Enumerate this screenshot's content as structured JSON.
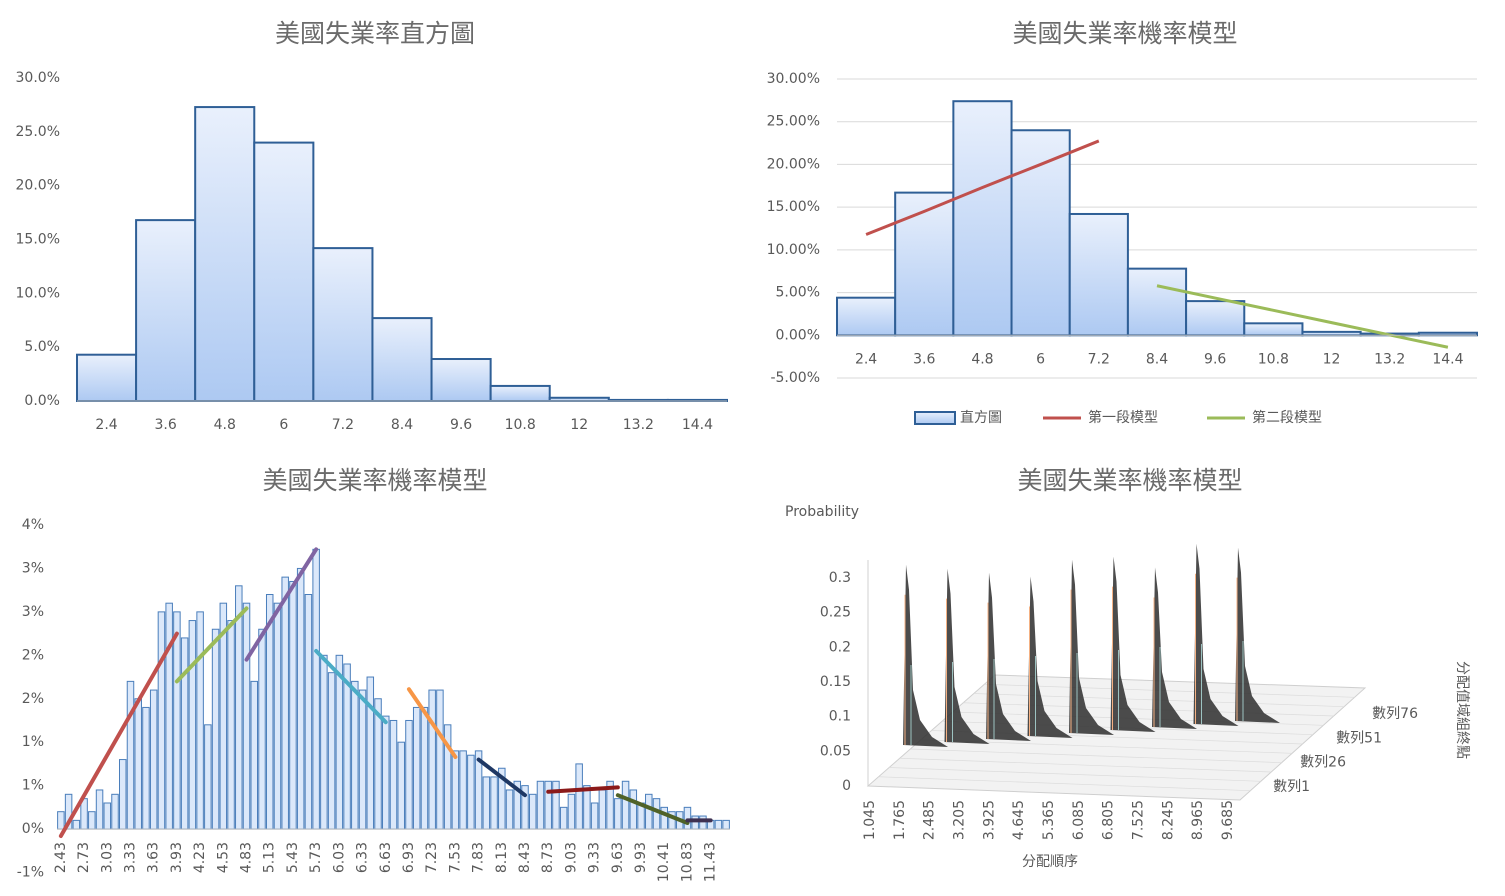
{
  "chart_data": [
    {
      "type": "bar",
      "title": "美國失業率直方圖",
      "categories": [
        "2.4",
        "3.6",
        "4.8",
        "6",
        "7.2",
        "8.4",
        "9.6",
        "10.8",
        "12",
        "13.2",
        "14.4"
      ],
      "values": [
        4.3,
        16.8,
        27.3,
        24.0,
        14.2,
        7.7,
        3.9,
        1.4,
        0.3,
        0.1,
        0.1
      ],
      "color": "#2f5f96",
      "ylim": [
        0,
        30
      ],
      "yticks": [
        {
          "value": 0,
          "label": "0.0%"
        },
        {
          "value": 5,
          "label": "5.0%"
        },
        {
          "value": 10,
          "label": "10.0%"
        },
        {
          "value": 15,
          "label": "15.0%"
        },
        {
          "value": 20,
          "label": "20.0%"
        },
        {
          "value": 25,
          "label": "25.0%"
        },
        {
          "value": 30,
          "label": "30.0%"
        }
      ],
      "grid": false
    },
    {
      "type": "combo",
      "title": "美國失業率機率模型",
      "categories": [
        "2.4",
        "3.6",
        "4.8",
        "6",
        "7.2",
        "8.4",
        "9.6",
        "10.8",
        "12",
        "13.2",
        "14.4"
      ],
      "series": [
        {
          "name": "直方圖",
          "color": "#2f5f96",
          "values": [
            4.4,
            16.7,
            27.4,
            24.0,
            14.2,
            7.8,
            4.0,
            1.4,
            0.4,
            0.2,
            0.3
          ]
        },
        {
          "name": "第一段模型",
          "color": "#c0504d",
          "values": [
            11.8,
            14.5,
            17.3,
            20.0,
            22.75,
            null,
            null,
            null,
            null,
            null,
            null
          ]
        },
        {
          "name": "第二段模型",
          "color": "#9bbb59",
          "values": [
            null,
            null,
            null,
            null,
            null,
            5.8,
            4.36,
            2.92,
            1.48,
            0.04,
            -1.4
          ]
        }
      ],
      "ylim": [
        -5,
        30
      ],
      "yticks": [
        {
          "value": -5,
          "label": "-5.00%"
        },
        {
          "value": 0,
          "label": "0.00%"
        },
        {
          "value": 5,
          "label": "5.00%"
        },
        {
          "value": 10,
          "label": "10.00%"
        },
        {
          "value": 15,
          "label": "15.00%"
        },
        {
          "value": 20,
          "label": "20.00%"
        },
        {
          "value": 25,
          "label": "25.00%"
        },
        {
          "value": 30,
          "label": "30.00%"
        }
      ],
      "grid": true,
      "legend": "bottom"
    },
    {
      "type": "column-segments",
      "title": "美國失業率機率模型",
      "categories": [
        "2.43",
        null,
        null,
        "2.73",
        null,
        null,
        "3.03",
        null,
        null,
        "3.33",
        null,
        null,
        "3.63",
        null,
        null,
        "3.93",
        null,
        null,
        "4.23",
        null,
        null,
        "4.53",
        null,
        null,
        "4.83",
        null,
        null,
        "5.13",
        null,
        null,
        "5.43",
        null,
        null,
        "5.73",
        null,
        null,
        "6.03",
        null,
        null,
        "6.33",
        null,
        null,
        "6.63",
        null,
        null,
        "6.93",
        null,
        null,
        "7.23",
        null,
        null,
        "7.53",
        null,
        null,
        "7.83",
        null,
        null,
        "8.13",
        null,
        null,
        "8.43",
        null,
        null,
        "8.73",
        null,
        null,
        "9.03",
        null,
        null,
        "9.33",
        null,
        null,
        "9.63",
        null,
        null,
        "9.93",
        null,
        null,
        "10.41",
        null,
        null,
        "10.83",
        null,
        null,
        "11.43",
        null,
        null
      ],
      "values": [
        0.2,
        0.4,
        0.1,
        0.35,
        0.2,
        0.45,
        0.3,
        0.4,
        0.8,
        1.7,
        1.5,
        1.4,
        1.6,
        2.5,
        2.6,
        2.5,
        2.2,
        2.4,
        2.5,
        1.2,
        2.3,
        2.6,
        2.4,
        2.8,
        2.6,
        1.7,
        2.3,
        2.7,
        2.6,
        2.9,
        2.85,
        3.0,
        2.7,
        3.22,
        2.0,
        1.8,
        2.0,
        1.9,
        1.7,
        1.6,
        1.75,
        1.5,
        1.3,
        1.25,
        1.0,
        1.25,
        1.4,
        1.4,
        1.6,
        1.6,
        1.2,
        0.9,
        0.9,
        0.85,
        0.9,
        0.6,
        0.6,
        0.7,
        0.45,
        0.55,
        0.5,
        0.4,
        0.55,
        0.55,
        0.55,
        0.25,
        0.4,
        0.75,
        0.5,
        0.3,
        0.45,
        0.55,
        0.35,
        0.55,
        0.45,
        0.3,
        0.4,
        0.35,
        0.25,
        0.2,
        0.2,
        0.25,
        0.15,
        0.15,
        0.1,
        0.1,
        0.1
      ],
      "color": "#4a7ebb",
      "segments": [
        {
          "color": "#c0504d",
          "x": [
            "2.43",
            "3.93"
          ],
          "values": [
            -0.08,
            2.25
          ]
        },
        {
          "color": "#9bbb59",
          "x": [
            "3.93",
            "4.83"
          ],
          "values": [
            1.7,
            2.54
          ]
        },
        {
          "color": "#8064a2",
          "x": [
            "4.83",
            "5.73"
          ],
          "values": [
            1.95,
            3.22
          ]
        },
        {
          "color": "#4bacc6",
          "x": [
            "5.73",
            "6.63"
          ],
          "values": [
            2.05,
            1.23
          ]
        },
        {
          "color": "#f79646",
          "x": [
            "6.93",
            "7.53"
          ],
          "values": [
            1.61,
            0.83
          ]
        },
        {
          "color": "#1f3864",
          "x": [
            "7.83",
            "8.43"
          ],
          "values": [
            0.8,
            0.39
          ]
        },
        {
          "color": "#8b1a1a",
          "x": [
            "8.73",
            "9.63"
          ],
          "values": [
            0.43,
            0.48
          ]
        },
        {
          "color": "#4f6228",
          "x": [
            "9.63",
            "10.83"
          ],
          "values": [
            0.39,
            0.07
          ]
        },
        {
          "color": "#3f3151",
          "x": [
            "10.83",
            "11.43"
          ],
          "values": [
            0.1,
            0.1
          ]
        }
      ],
      "ylim": [
        -0.5,
        3.5
      ],
      "yticks": [
        {
          "value": -0.5,
          "label": "-1%"
        },
        {
          "value": 0,
          "label": "0%"
        },
        {
          "value": 0.5,
          "label": "1%"
        },
        {
          "value": 1,
          "label": "1%"
        },
        {
          "value": 1.5,
          "label": "2%"
        },
        {
          "value": 2,
          "label": "2%"
        },
        {
          "value": 2.5,
          "label": "3%"
        },
        {
          "value": 3,
          "label": "3%"
        },
        {
          "value": 3.5,
          "label": "4%"
        }
      ]
    },
    {
      "type": "surface3d",
      "title": "美國失業率機率模型",
      "zlabel": "Probability",
      "xlabel": "分配順序",
      "depth_label": "分配值域組終點",
      "categories": [
        "1.045",
        "1.765",
        "2.485",
        "3.205",
        "3.925",
        "4.645",
        "5.365",
        "6.085",
        "6.805",
        "7.525",
        "8.245",
        "8.965",
        "9.685"
      ],
      "depth_categories": [
        "數列1",
        "數列26",
        "數列51",
        "數列76"
      ],
      "peaks": [
        0.26,
        0.25,
        0.24,
        0.23,
        0.25,
        0.25,
        0.23,
        0.26,
        0.25
      ],
      "color": "#333333",
      "zlim": [
        0,
        0.3
      ],
      "zticks": [
        0,
        0.05,
        0.1,
        0.15,
        0.2,
        0.25,
        0.3
      ]
    }
  ]
}
